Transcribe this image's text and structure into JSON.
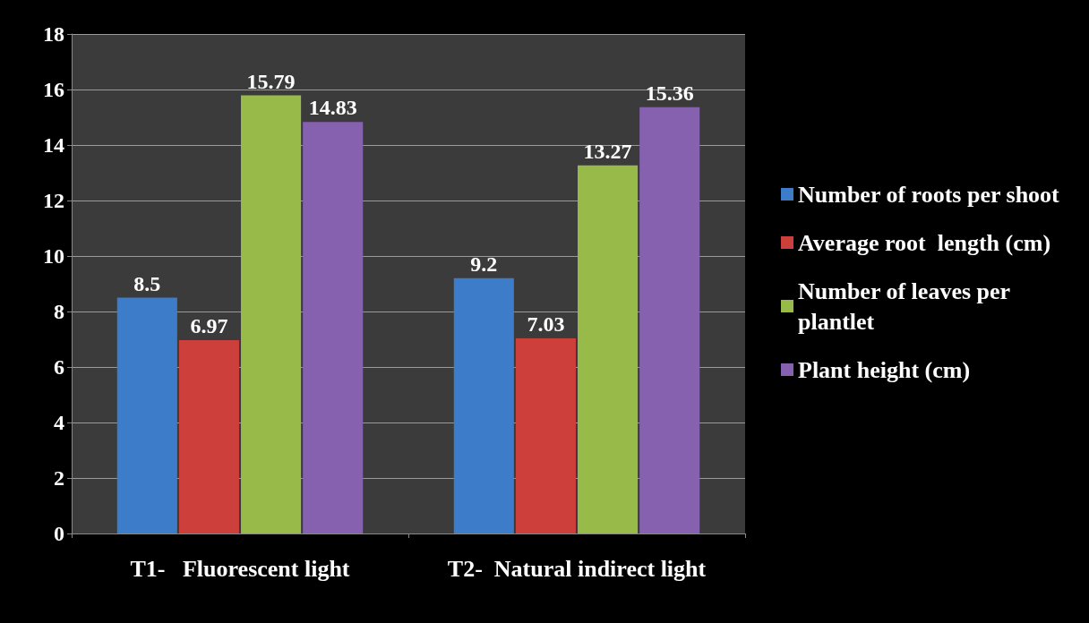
{
  "chart_data": {
    "type": "bar",
    "categories": [
      "T1-   Fluorescent light",
      "T2-  Natural indirect light"
    ],
    "series": [
      {
        "name": "Number of roots per shoot",
        "color": "#3c7cc8",
        "values": [
          8.5,
          9.2
        ]
      },
      {
        "name": "Average root  length (cm)",
        "color": "#cc3f3b",
        "values": [
          6.97,
          7.03
        ]
      },
      {
        "name": "Number of leaves per plantlet",
        "color": "#98ba48",
        "values": [
          15.79,
          13.27
        ]
      },
      {
        "name": "Plant height (cm)",
        "color": "#8561b0",
        "values": [
          14.83,
          15.36
        ]
      }
    ],
    "ylim": [
      0,
      18
    ],
    "yticks": [
      0,
      2,
      4,
      6,
      8,
      10,
      12,
      14,
      16,
      18
    ],
    "grid": "y",
    "legend": "right",
    "data_labels": true
  }
}
